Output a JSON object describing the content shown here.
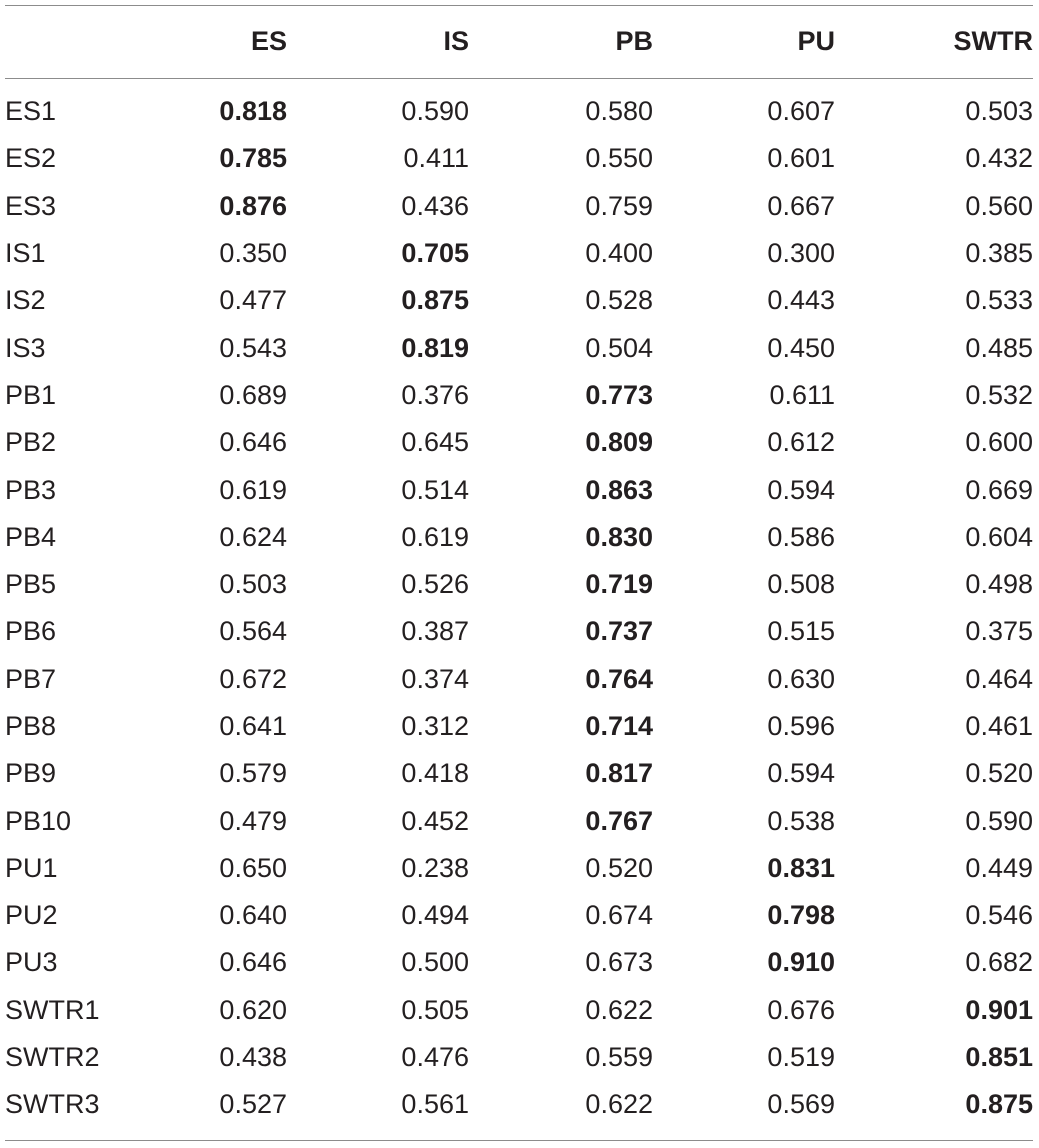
{
  "table": {
    "headers": [
      "",
      "ES",
      "IS",
      "PB",
      "PU",
      "SWTR"
    ],
    "rows": [
      {
        "label": "ES1",
        "values": [
          "0.818",
          "0.590",
          "0.580",
          "0.607",
          "0.503"
        ],
        "bold": 0
      },
      {
        "label": "ES2",
        "values": [
          "0.785",
          "0.411",
          "0.550",
          "0.601",
          "0.432"
        ],
        "bold": 0
      },
      {
        "label": "ES3",
        "values": [
          "0.876",
          "0.436",
          "0.759",
          "0.667",
          "0.560"
        ],
        "bold": 0
      },
      {
        "label": "IS1",
        "values": [
          "0.350",
          "0.705",
          "0.400",
          "0.300",
          "0.385"
        ],
        "bold": 1
      },
      {
        "label": "IS2",
        "values": [
          "0.477",
          "0.875",
          "0.528",
          "0.443",
          "0.533"
        ],
        "bold": 1
      },
      {
        "label": "IS3",
        "values": [
          "0.543",
          "0.819",
          "0.504",
          "0.450",
          "0.485"
        ],
        "bold": 1
      },
      {
        "label": "PB1",
        "values": [
          "0.689",
          "0.376",
          "0.773",
          "0.611",
          "0.532"
        ],
        "bold": 2
      },
      {
        "label": "PB2",
        "values": [
          "0.646",
          "0.645",
          "0.809",
          "0.612",
          "0.600"
        ],
        "bold": 2
      },
      {
        "label": "PB3",
        "values": [
          "0.619",
          "0.514",
          "0.863",
          "0.594",
          "0.669"
        ],
        "bold": 2
      },
      {
        "label": "PB4",
        "values": [
          "0.624",
          "0.619",
          "0.830",
          "0.586",
          "0.604"
        ],
        "bold": 2
      },
      {
        "label": "PB5",
        "values": [
          "0.503",
          "0.526",
          "0.719",
          "0.508",
          "0.498"
        ],
        "bold": 2
      },
      {
        "label": "PB6",
        "values": [
          "0.564",
          "0.387",
          "0.737",
          "0.515",
          "0.375"
        ],
        "bold": 2
      },
      {
        "label": "PB7",
        "values": [
          "0.672",
          "0.374",
          "0.764",
          "0.630",
          "0.464"
        ],
        "bold": 2
      },
      {
        "label": "PB8",
        "values": [
          "0.641",
          "0.312",
          "0.714",
          "0.596",
          "0.461"
        ],
        "bold": 2
      },
      {
        "label": "PB9",
        "values": [
          "0.579",
          "0.418",
          "0.817",
          "0.594",
          "0.520"
        ],
        "bold": 2
      },
      {
        "label": "PB10",
        "values": [
          "0.479",
          "0.452",
          "0.767",
          "0.538",
          "0.590"
        ],
        "bold": 2
      },
      {
        "label": "PU1",
        "values": [
          "0.650",
          "0.238",
          "0.520",
          "0.831",
          "0.449"
        ],
        "bold": 3
      },
      {
        "label": "PU2",
        "values": [
          "0.640",
          "0.494",
          "0.674",
          "0.798",
          "0.546"
        ],
        "bold": 3
      },
      {
        "label": "PU3",
        "values": [
          "0.646",
          "0.500",
          "0.673",
          "0.910",
          "0.682"
        ],
        "bold": 3
      },
      {
        "label": "SWTR1",
        "values": [
          "0.620",
          "0.505",
          "0.622",
          "0.676",
          "0.901"
        ],
        "bold": 4
      },
      {
        "label": "SWTR2",
        "values": [
          "0.438",
          "0.476",
          "0.559",
          "0.519",
          "0.851"
        ],
        "bold": 4
      },
      {
        "label": "SWTR3",
        "values": [
          "0.527",
          "0.561",
          "0.622",
          "0.569",
          "0.875"
        ],
        "bold": 4
      }
    ]
  }
}
